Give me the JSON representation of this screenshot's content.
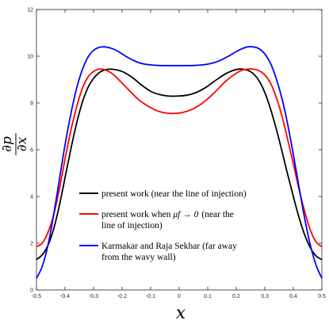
{
  "chart_data": {
    "type": "line",
    "xlabel": "x",
    "ylabel": "∂p/∂x",
    "ylabel_num": "∂p",
    "ylabel_den": "∂x",
    "xlim": [
      -0.5,
      0.5
    ],
    "ylim": [
      0,
      12
    ],
    "xticks": [
      -0.5,
      -0.4,
      -0.3,
      -0.2,
      -0.1,
      0,
      0.1,
      0.2,
      0.3,
      0.4,
      0.5
    ],
    "xtick_labels": [
      "-0.5",
      "-0.4",
      "-0.3",
      "-0.2",
      "-0.1",
      "0",
      "0.1",
      "0.2",
      "0.3",
      "0.4",
      "0.5"
    ],
    "yticks": [
      0,
      2,
      4,
      6,
      8,
      10,
      12
    ],
    "ytick_labels": [
      "0",
      "2",
      "4",
      "6",
      "8",
      "10",
      "12"
    ],
    "grid": false,
    "legend_position": "center-left",
    "series": [
      {
        "name": "present work (near the line of injection)",
        "color": "#000000",
        "x": [
          -0.5,
          -0.48,
          -0.46,
          -0.44,
          -0.42,
          -0.4,
          -0.38,
          -0.36,
          -0.34,
          -0.32,
          -0.3,
          -0.28,
          -0.26,
          -0.24,
          -0.22,
          -0.2,
          -0.18,
          -0.16,
          -0.14,
          -0.12,
          -0.1,
          -0.08,
          -0.06,
          -0.04,
          -0.02,
          0,
          0.02,
          0.04,
          0.06,
          0.08,
          0.1,
          0.12,
          0.14,
          0.16,
          0.18,
          0.2,
          0.22,
          0.24,
          0.26,
          0.28,
          0.3,
          0.32,
          0.34,
          0.36,
          0.38,
          0.4,
          0.42,
          0.44,
          0.46,
          0.48,
          0.5
        ],
        "y": [
          1.3,
          1.5,
          1.9,
          2.6,
          3.6,
          4.8,
          6.0,
          7.1,
          8.0,
          8.65,
          9.05,
          9.3,
          9.42,
          9.45,
          9.42,
          9.35,
          9.22,
          9.05,
          8.85,
          8.66,
          8.5,
          8.4,
          8.34,
          8.3,
          8.29,
          8.3,
          8.32,
          8.37,
          8.45,
          8.57,
          8.72,
          8.9,
          9.07,
          9.23,
          9.35,
          9.43,
          9.45,
          9.4,
          9.25,
          8.95,
          8.45,
          7.75,
          6.9,
          5.95,
          4.95,
          4.0,
          3.1,
          2.35,
          1.8,
          1.45,
          1.3
        ]
      },
      {
        "name": "present work when μf → 0 (near the line of injection)",
        "color": "#ff0000",
        "x": [
          -0.5,
          -0.48,
          -0.46,
          -0.44,
          -0.42,
          -0.4,
          -0.38,
          -0.36,
          -0.34,
          -0.32,
          -0.3,
          -0.28,
          -0.26,
          -0.24,
          -0.22,
          -0.2,
          -0.18,
          -0.16,
          -0.14,
          -0.12,
          -0.1,
          -0.08,
          -0.06,
          -0.04,
          -0.02,
          0,
          0.02,
          0.04,
          0.06,
          0.08,
          0.1,
          0.12,
          0.14,
          0.16,
          0.18,
          0.2,
          0.22,
          0.24,
          0.26,
          0.28,
          0.3,
          0.32,
          0.34,
          0.36,
          0.38,
          0.4,
          0.42,
          0.44,
          0.46,
          0.48,
          0.5
        ],
        "y": [
          1.85,
          2.0,
          2.45,
          3.2,
          4.3,
          5.6,
          6.8,
          7.8,
          8.6,
          9.1,
          9.35,
          9.45,
          9.42,
          9.3,
          9.1,
          8.85,
          8.6,
          8.35,
          8.12,
          7.95,
          7.8,
          7.68,
          7.6,
          7.56,
          7.55,
          7.57,
          7.62,
          7.7,
          7.82,
          7.98,
          8.18,
          8.4,
          8.65,
          8.9,
          9.1,
          9.27,
          9.4,
          9.45,
          9.45,
          9.38,
          9.2,
          8.85,
          8.25,
          7.45,
          6.45,
          5.4,
          4.3,
          3.35,
          2.55,
          2.05,
          1.85
        ]
      },
      {
        "name": "Karmakar and Raja Sekhar (far away from the wavy wall)",
        "color": "#0000ff",
        "x": [
          -0.5,
          -0.48,
          -0.46,
          -0.44,
          -0.42,
          -0.4,
          -0.38,
          -0.36,
          -0.34,
          -0.32,
          -0.3,
          -0.28,
          -0.26,
          -0.24,
          -0.22,
          -0.2,
          -0.18,
          -0.16,
          -0.14,
          -0.12,
          -0.1,
          -0.08,
          -0.06,
          -0.04,
          -0.02,
          0,
          0.02,
          0.04,
          0.06,
          0.08,
          0.1,
          0.12,
          0.14,
          0.16,
          0.18,
          0.2,
          0.22,
          0.24,
          0.26,
          0.28,
          0.3,
          0.32,
          0.34,
          0.36,
          0.38,
          0.4,
          0.42,
          0.44,
          0.46,
          0.48,
          0.5
        ],
        "y": [
          0.5,
          1.0,
          1.9,
          3.2,
          4.7,
          6.2,
          7.5,
          8.6,
          9.4,
          9.95,
          10.25,
          10.38,
          10.4,
          10.35,
          10.25,
          10.1,
          9.95,
          9.82,
          9.72,
          9.66,
          9.63,
          9.61,
          9.6,
          9.6,
          9.6,
          9.6,
          9.6,
          9.6,
          9.61,
          9.63,
          9.66,
          9.72,
          9.8,
          9.92,
          10.05,
          10.2,
          10.32,
          10.4,
          10.4,
          10.32,
          10.1,
          9.7,
          9.05,
          8.2,
          7.1,
          5.8,
          4.4,
          3.05,
          1.9,
          1.05,
          0.5
        ]
      }
    ],
    "legend": [
      {
        "lines": [
          "present work (near the line of injection)"
        ]
      },
      {
        "lines": [
          "present work when ",
          "(near the",
          "line of injection)"
        ],
        "math": "μf → 0"
      },
      {
        "lines": [
          "Karmakar and Raja Sekhar (far away",
          "from the wavy wall)"
        ]
      }
    ]
  }
}
